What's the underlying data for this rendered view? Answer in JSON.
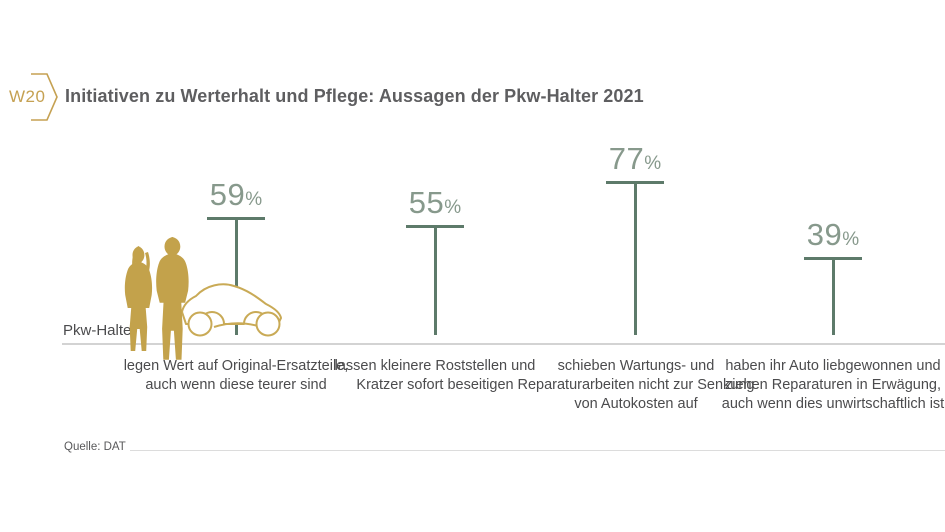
{
  "header": {
    "badge": "W20",
    "title": "Initiativen zu Werterhalt und Pflege: Aussagen der Pkw-Halter 2021"
  },
  "axis": {
    "label": "Pkw-Halter"
  },
  "footer": {
    "source": "Quelle: DAT"
  },
  "icons": {
    "badge_chevron": "w20-badge-chevron-icon",
    "couple": "couple-silhouette-icon",
    "car": "car-outline-icon"
  },
  "colors": {
    "gold": "#c5a152",
    "pin_line": "#5d7a6a",
    "pin_value_text": "#87998c",
    "baseline_gray": "#d3d3d3",
    "title_text": "#5e5e60",
    "body_text": "#4b4b4d"
  },
  "chart_data": {
    "type": "bar",
    "title": "Initiativen zu Werterhalt und Pflege: Aussagen der Pkw-Halter 2021",
    "group_label": "Pkw-Halter",
    "unit": "%",
    "ylim": [
      0,
      100
    ],
    "grid": false,
    "legend": false,
    "source": "Quelle: DAT",
    "points": [
      {
        "value": 59,
        "value_label": "59",
        "unit": "%",
        "caption": "legen Wert auf Original-Ersatzteile, auch wenn diese teurer sind"
      },
      {
        "value": 55,
        "value_label": "55",
        "unit": "%",
        "caption": "lassen kleinere Roststellen und Kratzer sofort beseitigen"
      },
      {
        "value": 77,
        "value_label": "77",
        "unit": "%",
        "caption": "schieben Wartungs- und Reparaturarbeiten nicht zur Senkung von Autokosten auf"
      },
      {
        "value": 39,
        "value_label": "39",
        "unit": "%",
        "caption": "haben ihr Auto liebgewonnen und ziehen Reparaturen in Erwägung, auch wenn dies unwirtschaftlich ist"
      }
    ]
  }
}
